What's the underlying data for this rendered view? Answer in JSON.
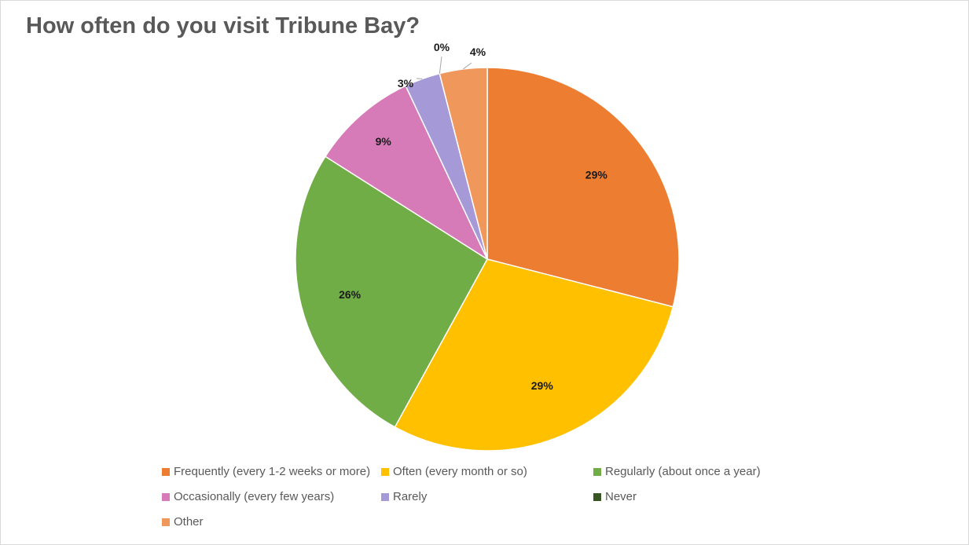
{
  "chart_data": {
    "type": "pie",
    "title": "How often do you visit Tribune Bay?",
    "slices": [
      {
        "label": "Frequently (every 1-2 weeks or more)",
        "value": 29,
        "display": "29%",
        "color": "#ed7d31"
      },
      {
        "label": "Often (every month or so)",
        "value": 29,
        "display": "29%",
        "color": "#ffc000"
      },
      {
        "label": "Regularly (about once a year)",
        "value": 26,
        "display": "26%",
        "color": "#70ad47"
      },
      {
        "label": "Occasionally (every few years)",
        "value": 9,
        "display": "9%",
        "color": "#d67ab8"
      },
      {
        "label": "Rarely",
        "value": 3,
        "display": "3%",
        "color": "#a699d8"
      },
      {
        "label": "Never",
        "value": 0,
        "display": "0%",
        "color": "#375623"
      },
      {
        "label": "Other",
        "value": 4,
        "display": "4%",
        "color": "#f0975b"
      }
    ],
    "legend_position": "bottom"
  }
}
